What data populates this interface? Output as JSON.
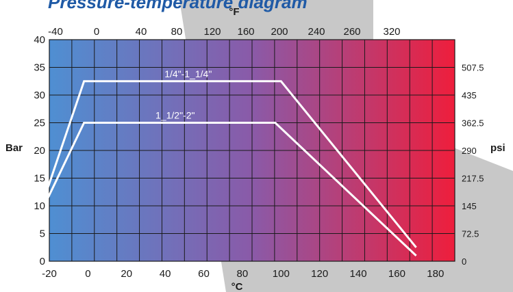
{
  "title": "Pressure-temperature diagram",
  "colors": {
    "title": "#1f5aa6",
    "gradient_start": "#4f8fd2",
    "gradient_mid": "#8a5aa8",
    "gradient_end": "#ee1e3c",
    "grid": "#1a1a1a",
    "series": "#ffffff",
    "backdrop": "#c8c8c8"
  },
  "chart_data": {
    "type": "line",
    "title": "Pressure-temperature diagram",
    "xlabel": "°C",
    "x2label": "°F",
    "ylabel": "Bar",
    "y2label": "psi",
    "xlim": [
      -20,
      190
    ],
    "ylim": [
      0,
      40
    ],
    "grid": true,
    "x_ticks": [
      -20,
      0,
      20,
      40,
      60,
      80,
      100,
      120,
      140,
      160,
      180
    ],
    "x2_ticks": [
      "-40",
      "0",
      "40",
      "80",
      "120",
      "160",
      "200",
      "240",
      "260",
      "320"
    ],
    "y_ticks": [
      0,
      5,
      10,
      15,
      20,
      25,
      30,
      35,
      40
    ],
    "y2_ticks": [
      "0",
      "72.5",
      "145",
      "217.5",
      "290",
      "362.5",
      "435",
      "507.5"
    ],
    "series": [
      {
        "name": "1/4\"-1_1/4\"",
        "x": [
          -22,
          -2,
          100,
          170
        ],
        "y": [
          12,
          32.5,
          32.5,
          2.5
        ]
      },
      {
        "name": "1_1/2\"-2\"",
        "x": [
          -22,
          -2,
          97,
          170
        ],
        "y": [
          10.5,
          25,
          25,
          1
        ]
      }
    ]
  }
}
